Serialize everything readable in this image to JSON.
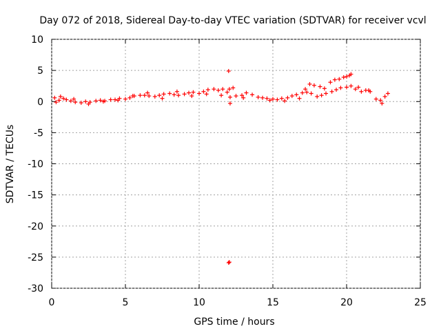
{
  "chart_data": {
    "type": "scatter",
    "title": "Day 072 of 2018, Sidereal Day-to-day VTEC variation (SDTVAR) for receiver vcvl",
    "xlabel": "GPS time / hours",
    "ylabel": "SDTVAR / TECUs",
    "xlim": [
      0,
      25
    ],
    "ylim": [
      -30,
      10
    ],
    "xticks": [
      "0",
      "5",
      "10",
      "15",
      "20",
      "25"
    ],
    "yticks": [
      "10",
      "5",
      "0",
      "-5",
      "-10",
      "-15",
      "-20",
      "-25",
      "-30"
    ],
    "grid": true,
    "marker": "+",
    "color": "#ff0000",
    "series": [
      {
        "name": "SDTVAR",
        "x": [
          0.2,
          0.5,
          0.8,
          1.0,
          1.3,
          1.6,
          2.0,
          2.3,
          2.6,
          3.0,
          3.3,
          3.6,
          4.0,
          4.3,
          4.6,
          5.0,
          5.3,
          5.6,
          6.0,
          6.3,
          6.6,
          7.0,
          7.3,
          7.6,
          8.0,
          8.3,
          8.6,
          9.0,
          9.3,
          9.6,
          10.0,
          10.3,
          10.6,
          11.0,
          11.3,
          11.6,
          11.9,
          12.1,
          12.5,
          12.9,
          13.2,
          13.6,
          14.0,
          14.3,
          14.6,
          15.0,
          15.3,
          15.6,
          16.0,
          16.3,
          16.6,
          17.0,
          17.3,
          17.6,
          18.0,
          18.3,
          18.6,
          19.0,
          19.3,
          19.6,
          20.0,
          20.3,
          20.6,
          21.0,
          21.3,
          21.6,
          22.0,
          22.3,
          22.6,
          22.8,
          0.3,
          0.6,
          1.5,
          2.5,
          3.5,
          4.5,
          5.5,
          6.5,
          7.5,
          8.5,
          9.5,
          10.5,
          11.5,
          12.3,
          13.0,
          14.8,
          15.8,
          16.8,
          17.5,
          18.2,
          18.9,
          19.5,
          20.2,
          20.8,
          21.5,
          22.4,
          12.0,
          12.05,
          12.1,
          12.05,
          12.0,
          17.2,
          17.8,
          18.5,
          19.2,
          19.8,
          20.3,
          20.0
        ],
        "y": [
          0.6,
          0.2,
          0.5,
          0.3,
          0.1,
          -0.1,
          -0.2,
          0.0,
          -0.1,
          0.1,
          0.2,
          0.1,
          0.3,
          0.3,
          0.5,
          0.4,
          0.6,
          0.9,
          1.0,
          1.0,
          0.9,
          0.8,
          1.0,
          1.2,
          1.3,
          1.1,
          1.0,
          1.2,
          1.4,
          1.5,
          1.3,
          1.6,
          1.9,
          2.0,
          1.8,
          2.0,
          1.5,
          0.7,
          0.9,
          1.0,
          1.4,
          1.1,
          0.7,
          0.6,
          0.5,
          0.4,
          0.3,
          0.5,
          0.6,
          0.9,
          1.1,
          1.4,
          1.5,
          1.3,
          0.8,
          1.0,
          1.3,
          1.6,
          1.9,
          2.2,
          2.3,
          2.5,
          2.0,
          1.6,
          1.8,
          1.6,
          0.4,
          0.2,
          0.8,
          1.3,
          -0.1,
          0.8,
          0.4,
          -0.4,
          0.0,
          0.2,
          0.9,
          1.4,
          0.5,
          1.6,
          0.9,
          1.2,
          1.0,
          2.2,
          0.6,
          0.2,
          0.1,
          0.5,
          2.8,
          2.4,
          3.1,
          3.6,
          4.2,
          2.3,
          1.8,
          -0.3,
          4.9,
          2.0,
          -0.3,
          -25.8,
          -25.9,
          2.0,
          2.6,
          2.1,
          3.5,
          3.9,
          4.4,
          4.0
        ]
      }
    ]
  }
}
